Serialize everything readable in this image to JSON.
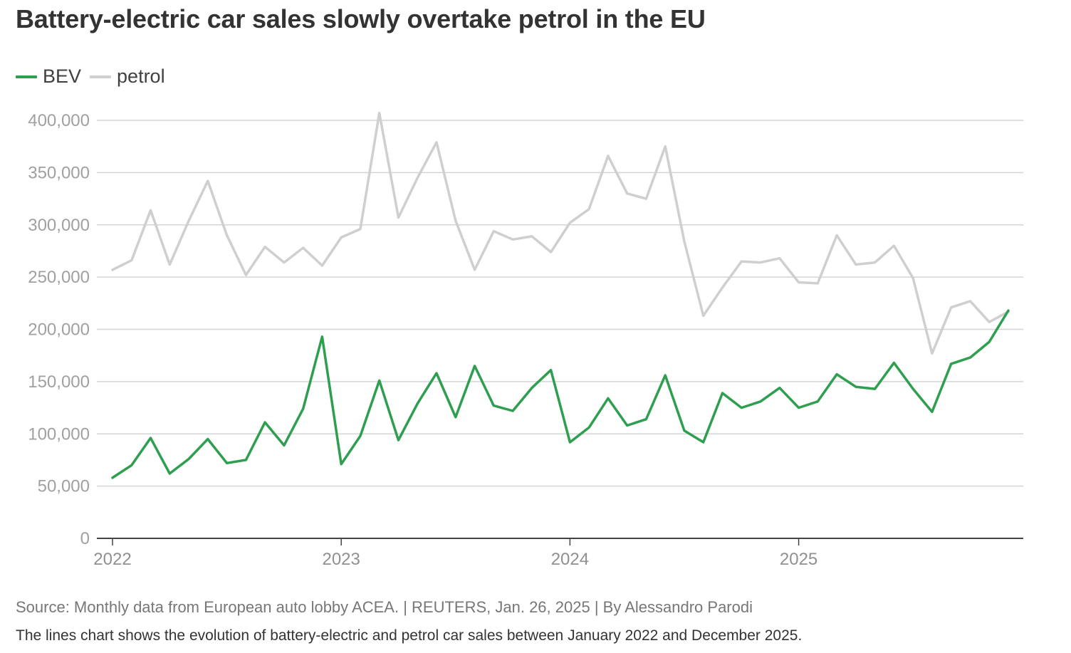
{
  "title": "Battery-electric car sales slowly overtake petrol in the EU",
  "source": "Source: Monthly data from European auto lobby ACEA. | REUTERS, Jan. 26, 2025 | By Alessandro Parodi",
  "description": "The lines chart shows the evolution of battery-electric and petrol car sales between January 2022 and December 2025.",
  "colors": {
    "bev": "#2e9e4f",
    "petrol": "#cfcfcf",
    "grid": "#d4d4d4",
    "axis": "#444444"
  },
  "chart_data": {
    "type": "line",
    "title": "Battery-electric car sales slowly overtake petrol in the EU",
    "xlabel": "",
    "ylabel": "",
    "ylim": [
      0,
      400000
    ],
    "yticks": [
      0,
      50000,
      100000,
      150000,
      200000,
      250000,
      300000,
      350000,
      400000
    ],
    "ytick_labels": [
      "0",
      "50,000",
      "100,000",
      "150,000",
      "200,000",
      "250,000",
      "300,000",
      "350,000",
      "400,000"
    ],
    "xticks": [
      {
        "label": "2022",
        "month_index": 0
      },
      {
        "label": "2023",
        "month_index": 12
      },
      {
        "label": "2024",
        "month_index": 24
      },
      {
        "label": "2025",
        "month_index": 36
      }
    ],
    "x_start": "January 2022",
    "x_end": "December 2025",
    "legend_position": "top-left",
    "series": [
      {
        "name": "BEV",
        "color": "#2e9e4f",
        "values": [
          58000,
          70000,
          96000,
          62000,
          76000,
          95000,
          72000,
          75000,
          111000,
          89000,
          124000,
          193000,
          71000,
          98000,
          151000,
          94000,
          129000,
          158000,
          116000,
          165000,
          127000,
          122000,
          144000,
          161000,
          92000,
          106000,
          134000,
          108000,
          114000,
          156000,
          103000,
          92000,
          139000,
          125000,
          131000,
          144000,
          125000,
          131000,
          157000,
          145000,
          143000,
          168000,
          143000,
          121000,
          167000,
          173000,
          188000,
          218000
        ]
      },
      {
        "name": "petrol",
        "color": "#cfcfcf",
        "values": [
          257000,
          266000,
          314000,
          262000,
          304000,
          342000,
          290000,
          252000,
          279000,
          264000,
          278000,
          261000,
          288000,
          296000,
          407000,
          307000,
          345000,
          379000,
          304000,
          257000,
          294000,
          286000,
          289000,
          274000,
          302000,
          315000,
          366000,
          330000,
          325000,
          375000,
          284000,
          213000,
          240000,
          265000,
          264000,
          268000,
          245000,
          244000,
          290000,
          262000,
          264000,
          280000,
          249000,
          177000,
          221000,
          227000,
          207000,
          217000
        ]
      }
    ]
  }
}
